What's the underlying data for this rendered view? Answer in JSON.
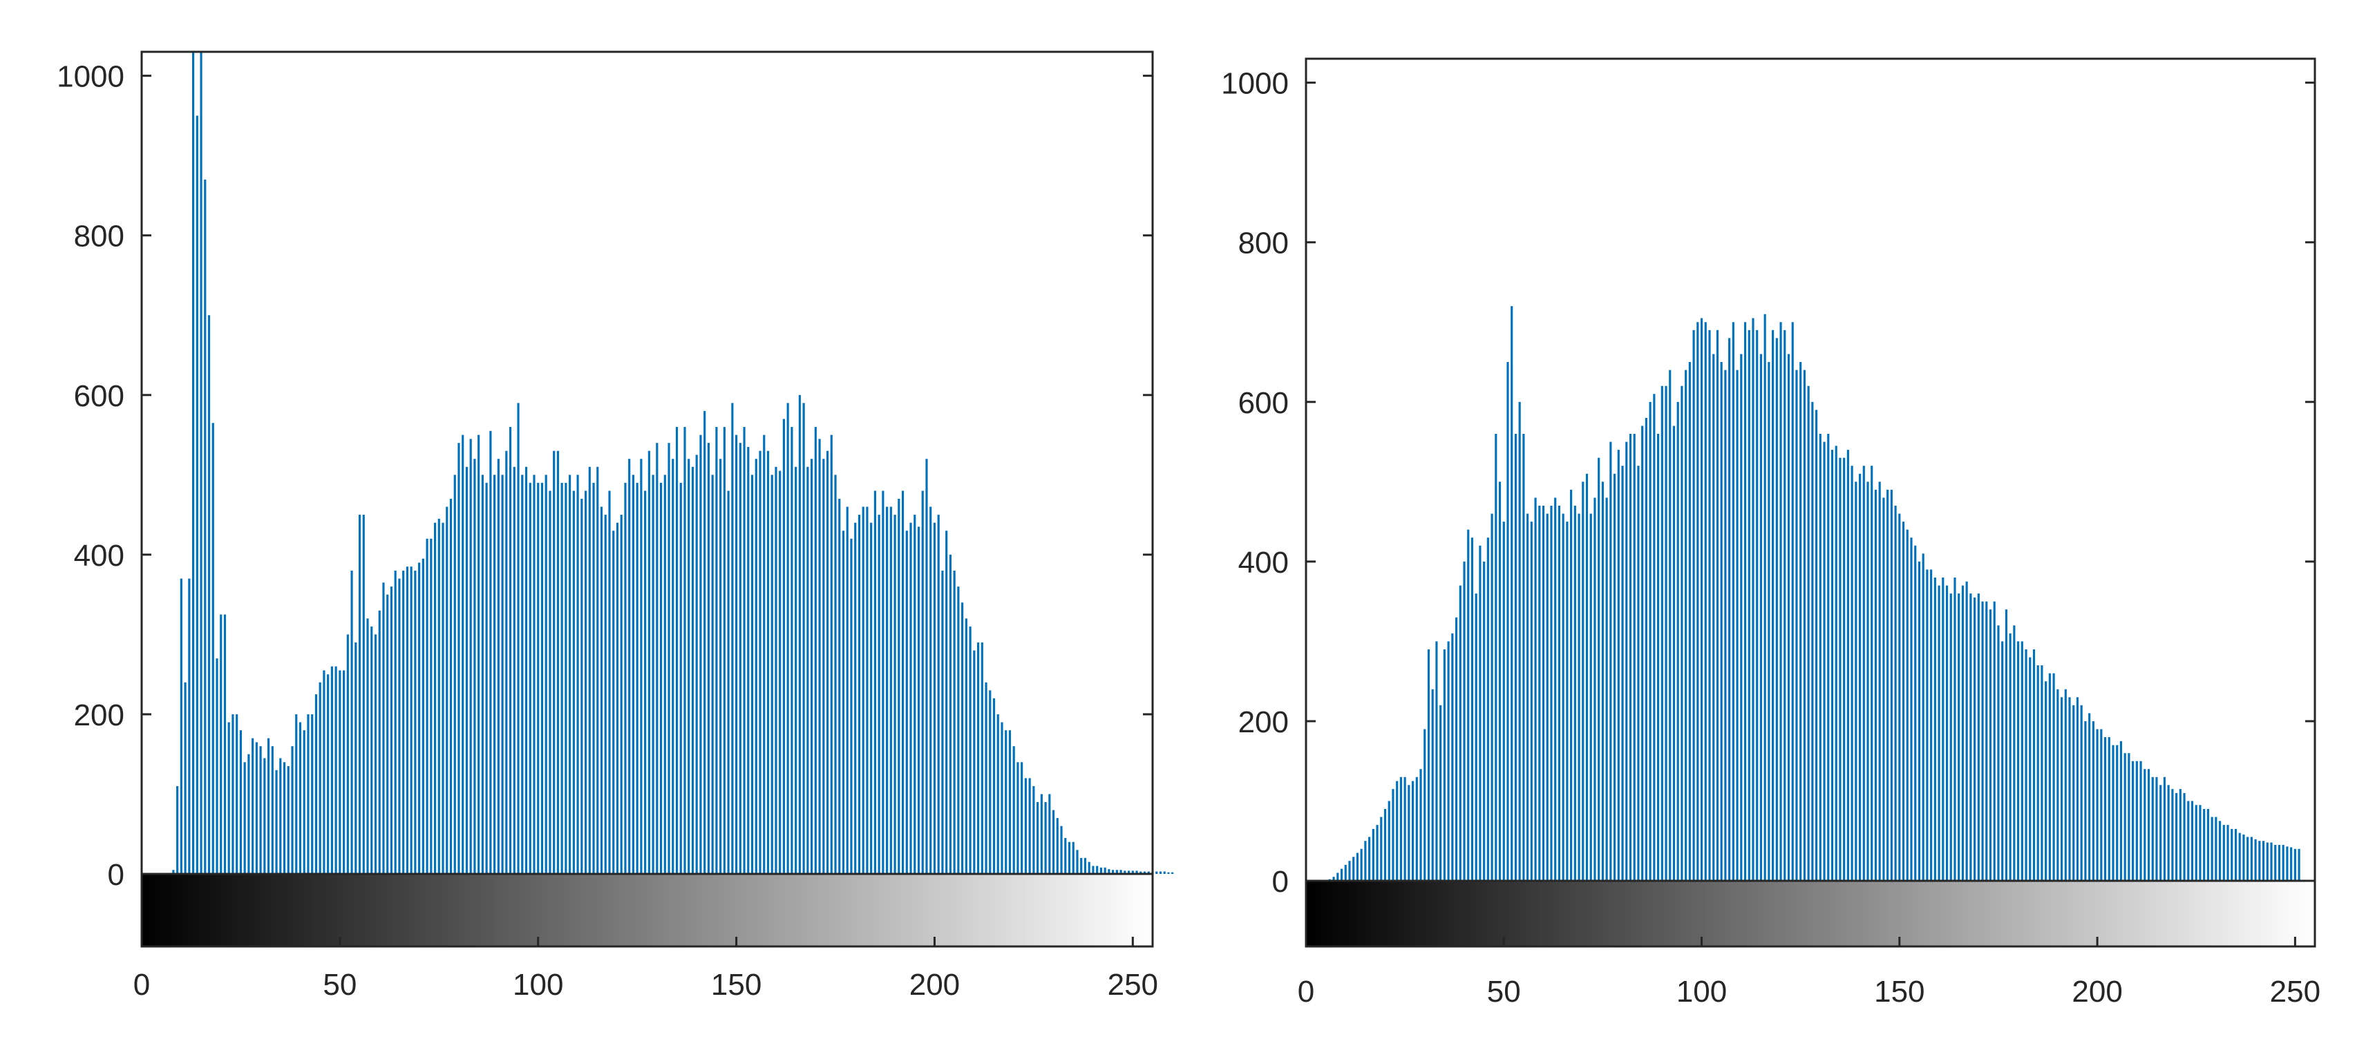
{
  "chart_data": [
    {
      "type": "bar",
      "title": "",
      "xlabel": "",
      "ylabel": "",
      "xlim": [
        0,
        255
      ],
      "ylim": [
        0,
        1030
      ],
      "xticks": [
        "0",
        "50",
        "100",
        "150",
        "200",
        "250"
      ],
      "yticks": [
        "0",
        "200",
        "400",
        "600",
        "800",
        "1000"
      ],
      "grid": false,
      "legend": "none",
      "colorbar": "grayscale 0-255",
      "bar_color": "#0072BD",
      "x_start": 0,
      "values": [
        0,
        0,
        0,
        0,
        0,
        0,
        0,
        0,
        5,
        110,
        370,
        240,
        370,
        1030,
        950,
        1030,
        870,
        700,
        565,
        270,
        325,
        325,
        190,
        200,
        200,
        180,
        140,
        150,
        170,
        165,
        160,
        145,
        170,
        160,
        130,
        145,
        140,
        135,
        160,
        200,
        190,
        180,
        200,
        200,
        225,
        240,
        255,
        250,
        260,
        260,
        255,
        255,
        300,
        380,
        290,
        450,
        450,
        320,
        310,
        300,
        330,
        365,
        350,
        360,
        380,
        370,
        380,
        385,
        385,
        380,
        390,
        395,
        420,
        420,
        440,
        445,
        440,
        460,
        470,
        500,
        540,
        550,
        510,
        545,
        520,
        550,
        500,
        490,
        555,
        500,
        520,
        500,
        530,
        560,
        510,
        590,
        500,
        510,
        490,
        500,
        490,
        490,
        500,
        480,
        530,
        530,
        490,
        490,
        500,
        480,
        500,
        470,
        480,
        510,
        490,
        510,
        460,
        450,
        480,
        430,
        440,
        450,
        490,
        520,
        500,
        490,
        520,
        480,
        530,
        500,
        540,
        490,
        500,
        540,
        520,
        560,
        490,
        560,
        520,
        510,
        525,
        550,
        580,
        540,
        500,
        560,
        520,
        560,
        480,
        590,
        550,
        540,
        560,
        535,
        500,
        520,
        530,
        550,
        530,
        500,
        510,
        505,
        570,
        590,
        560,
        510,
        600,
        590,
        510,
        520,
        560,
        545,
        520,
        530,
        550,
        500,
        470,
        430,
        460,
        420,
        440,
        450,
        460,
        460,
        440,
        480,
        450,
        480,
        460,
        460,
        450,
        470,
        480,
        430,
        440,
        450,
        435,
        480,
        520,
        460,
        440,
        450,
        380,
        430,
        400,
        380,
        360,
        340,
        320,
        310,
        280,
        290,
        290,
        240,
        230,
        220,
        200,
        190,
        180,
        180,
        160,
        140,
        140,
        120,
        120,
        110,
        90,
        100,
        90,
        100,
        80,
        70,
        60,
        45,
        40,
        40,
        30,
        20,
        20,
        15,
        10,
        10,
        8,
        8,
        6,
        5,
        5,
        5,
        4,
        4,
        4,
        4,
        3,
        3,
        3,
        3,
        3,
        3,
        3,
        2,
        2
      ]
    },
    {
      "type": "bar",
      "title": "",
      "xlabel": "",
      "ylabel": "",
      "xlim": [
        0,
        255
      ],
      "ylim": [
        0,
        1030
      ],
      "xticks": [
        "0",
        "50",
        "100",
        "150",
        "200",
        "250"
      ],
      "yticks": [
        "0",
        "200",
        "400",
        "600",
        "800",
        "1000"
      ],
      "grid": false,
      "legend": "none",
      "colorbar": "grayscale 0-255",
      "bar_color": "#0072BD",
      "x_start": 0,
      "values": [
        0,
        0,
        0,
        0,
        0,
        0,
        2,
        5,
        10,
        15,
        20,
        25,
        30,
        35,
        40,
        50,
        55,
        65,
        70,
        80,
        90,
        100,
        115,
        125,
        130,
        130,
        120,
        125,
        130,
        140,
        190,
        290,
        240,
        300,
        220,
        290,
        300,
        310,
        330,
        370,
        400,
        440,
        430,
        360,
        420,
        400,
        430,
        460,
        560,
        500,
        450,
        650,
        720,
        560,
        600,
        560,
        460,
        450,
        480,
        470,
        470,
        460,
        470,
        480,
        470,
        460,
        450,
        490,
        470,
        460,
        500,
        510,
        460,
        480,
        530,
        500,
        480,
        550,
        510,
        540,
        520,
        550,
        560,
        560,
        520,
        570,
        580,
        600,
        610,
        560,
        620,
        620,
        640,
        570,
        600,
        620,
        640,
        650,
        690,
        700,
        705,
        700,
        690,
        660,
        690,
        650,
        640,
        680,
        700,
        640,
        660,
        700,
        690,
        705,
        690,
        660,
        710,
        650,
        690,
        680,
        700,
        690,
        660,
        700,
        640,
        650,
        640,
        620,
        600,
        590,
        560,
        550,
        560,
        540,
        545,
        530,
        530,
        540,
        520,
        500,
        510,
        520,
        500,
        520,
        490,
        500,
        480,
        490,
        490,
        470,
        460,
        450,
        440,
        430,
        420,
        400,
        410,
        390,
        390,
        380,
        370,
        380,
        370,
        360,
        380,
        360,
        370,
        375,
        360,
        355,
        360,
        350,
        350,
        340,
        350,
        320,
        300,
        340,
        310,
        320,
        300,
        300,
        290,
        280,
        290,
        270,
        270,
        250,
        260,
        260,
        240,
        230,
        240,
        230,
        220,
        230,
        220,
        200,
        210,
        200,
        190,
        190,
        180,
        180,
        170,
        170,
        175,
        160,
        160,
        150,
        150,
        150,
        140,
        140,
        130,
        130,
        120,
        130,
        120,
        115,
        110,
        115,
        110,
        100,
        100,
        95,
        95,
        90,
        90,
        80,
        80,
        75,
        70,
        70,
        65,
        65,
        60,
        58,
        55,
        55,
        52,
        50,
        50,
        48,
        48,
        45,
        45,
        45,
        43,
        42,
        40,
        40
      ]
    }
  ]
}
